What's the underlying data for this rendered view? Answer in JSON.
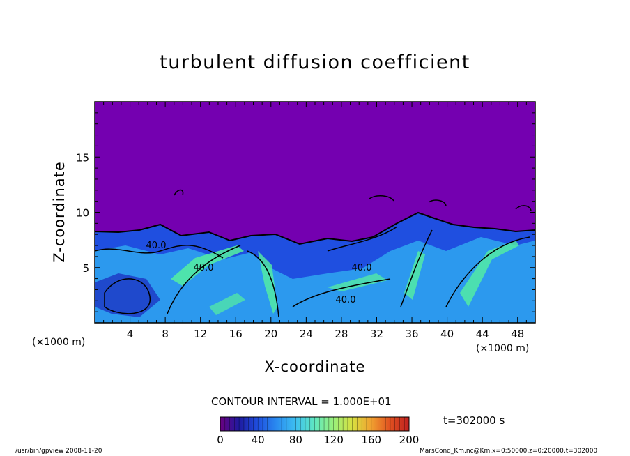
{
  "chart_data": {
    "type": "heatmap",
    "title": "turbulent diffusion coefficient",
    "xlabel": "X-coordinate",
    "ylabel": "Z-coordinate",
    "x_unit_label": "(×1000 m)",
    "xlim": [
      0,
      50
    ],
    "ylim": [
      0,
      20
    ],
    "xticks": [
      "4",
      "8",
      "12",
      "16",
      "20",
      "24",
      "28",
      "32",
      "36",
      "40",
      "44",
      "48"
    ],
    "yticks": [
      "5",
      "10",
      "15"
    ],
    "contour_interval_text": "CONTOUR INTERVAL = 1.000E+01",
    "contour_labels": [
      "40.0",
      "40.0",
      "40.0",
      "40.0"
    ],
    "colorbar": {
      "range": [
        0,
        200
      ],
      "ticks": [
        "0",
        "40",
        "80",
        "120",
        "160",
        "200"
      ],
      "colors": [
        "#6a0080",
        "#1e1aa0",
        "#1f50e0",
        "#2a8cf0",
        "#3dc0f0",
        "#60e8c0",
        "#9af07a",
        "#d8e040",
        "#f0a030",
        "#e05020",
        "#c02020"
      ]
    },
    "colors": {
      "background_field": "#7400b0",
      "low_layer": "#1f4fe0",
      "mid_layer": "#2fa6f0",
      "high_streaks": "#55f0a0"
    }
  },
  "time_label": "t=302000 s",
  "footer": {
    "left": "/usr/bin/gpview   2008-11-20",
    "right": "MarsCond_Km.nc@Km,x=0:50000,z=0:20000,t=302000"
  }
}
